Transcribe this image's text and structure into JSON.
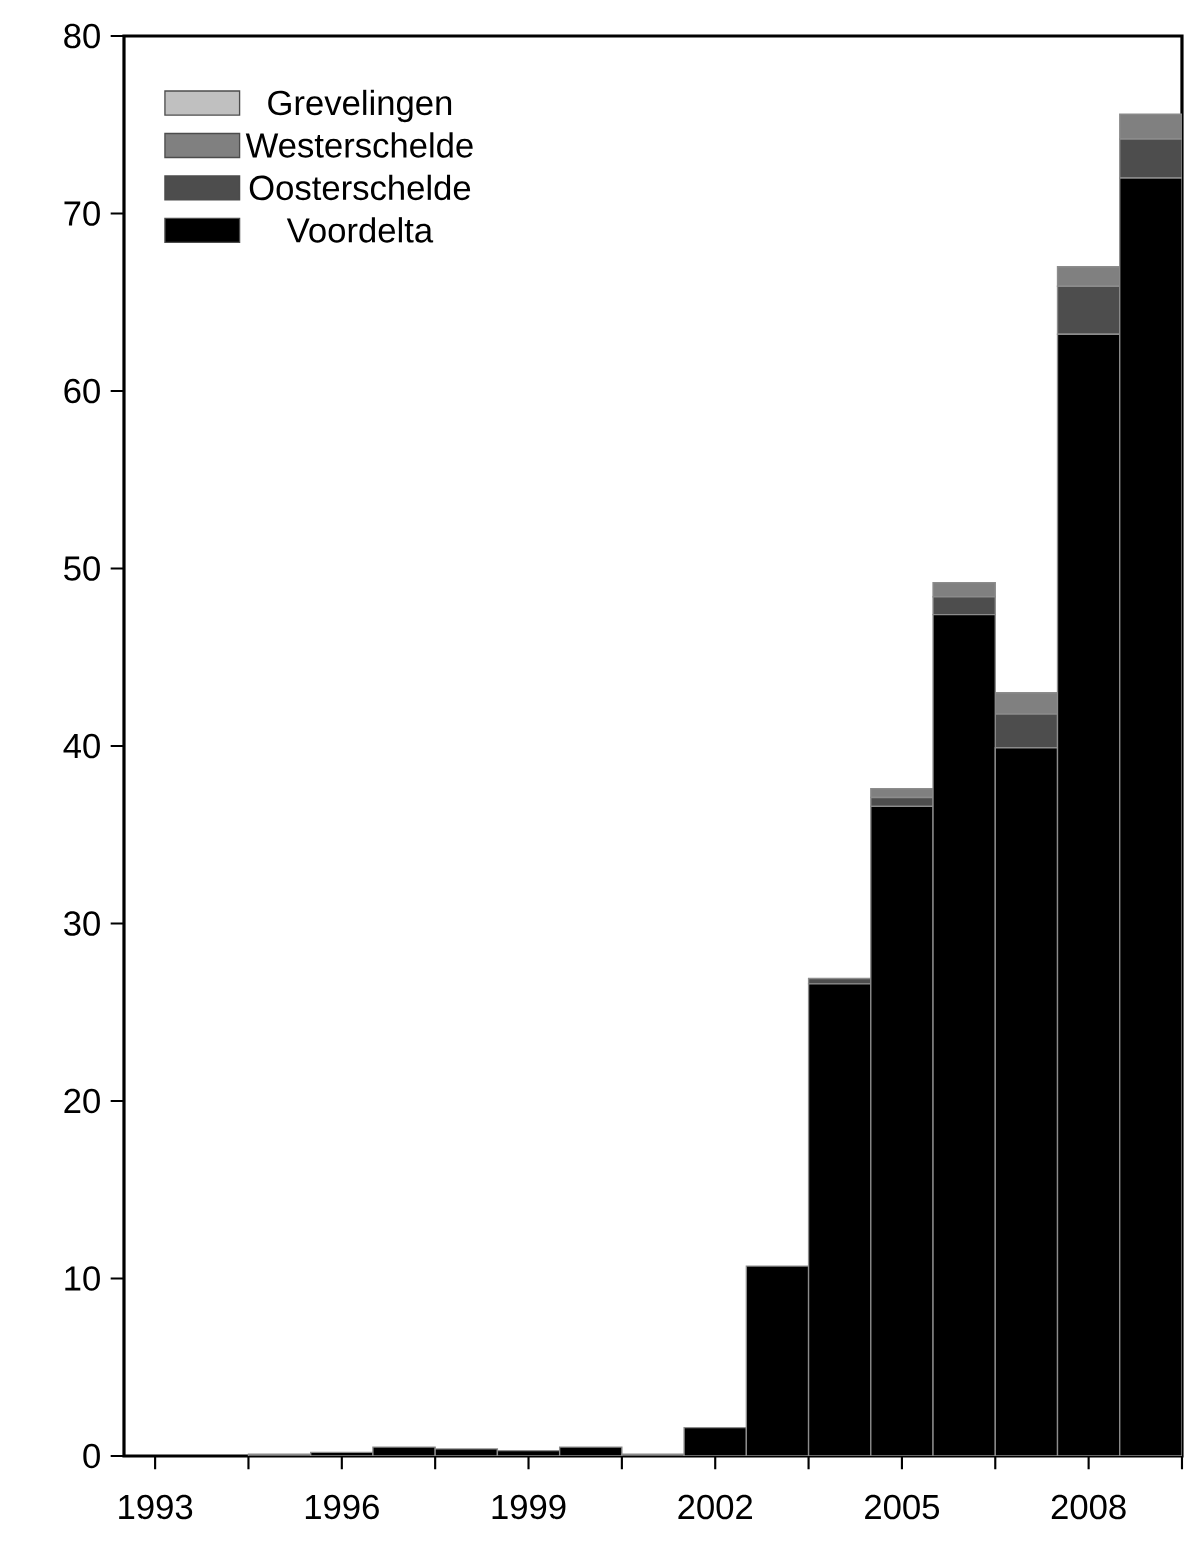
{
  "chart_data": {
    "type": "bar",
    "stacked": true,
    "x": [
      1993,
      1994,
      1995,
      1996,
      1997,
      1998,
      1999,
      2000,
      2001,
      2002,
      2003,
      2004,
      2005,
      2006,
      2007,
      2008,
      2009
    ],
    "xlim": [
      1992.5,
      2009.5
    ],
    "xticks": [
      1993,
      {
        "value": 1994.5,
        "label": null
      },
      1996,
      {
        "value": 1997.5,
        "label": null
      },
      1999,
      {
        "value": 2000.5,
        "label": null
      },
      2002,
      {
        "value": 2003.5,
        "label": null
      },
      2005,
      {
        "value": 2006.5,
        "label": null
      },
      2008,
      {
        "value": 2009.5,
        "label": null
      }
    ],
    "ylim": [
      0,
      80
    ],
    "yticks": [
      0,
      10,
      20,
      30,
      40,
      50,
      60,
      70,
      80
    ],
    "legend": "top left",
    "series": [
      {
        "name": "Voordelta",
        "color": "#000000",
        "values": [
          0,
          0,
          0.1,
          0.2,
          0.5,
          0.4,
          0.3,
          0.5,
          0.1,
          1.6,
          10.7,
          26.6,
          36.6,
          47.4,
          39.9,
          63.2,
          72.0
        ]
      },
      {
        "name": "Oosterschelde",
        "color": "#4d4d4d",
        "values": [
          0,
          0,
          0,
          0,
          0,
          0,
          0,
          0,
          0,
          0,
          0,
          0.3,
          0.5,
          1.0,
          1.9,
          2.7,
          2.2
        ]
      },
      {
        "name": "Westerschelde",
        "color": "#808080",
        "values": [
          0,
          0,
          0,
          0,
          0,
          0,
          0,
          0,
          0,
          0,
          0,
          0,
          0.5,
          0.8,
          1.2,
          1.1,
          1.4
        ]
      },
      {
        "name": "Grevelingen",
        "color": "#c0c0c0",
        "values": [
          0,
          0,
          0,
          0,
          0,
          0,
          0,
          0,
          0,
          0,
          0,
          0,
          0,
          0,
          0,
          0,
          0
        ]
      }
    ]
  }
}
